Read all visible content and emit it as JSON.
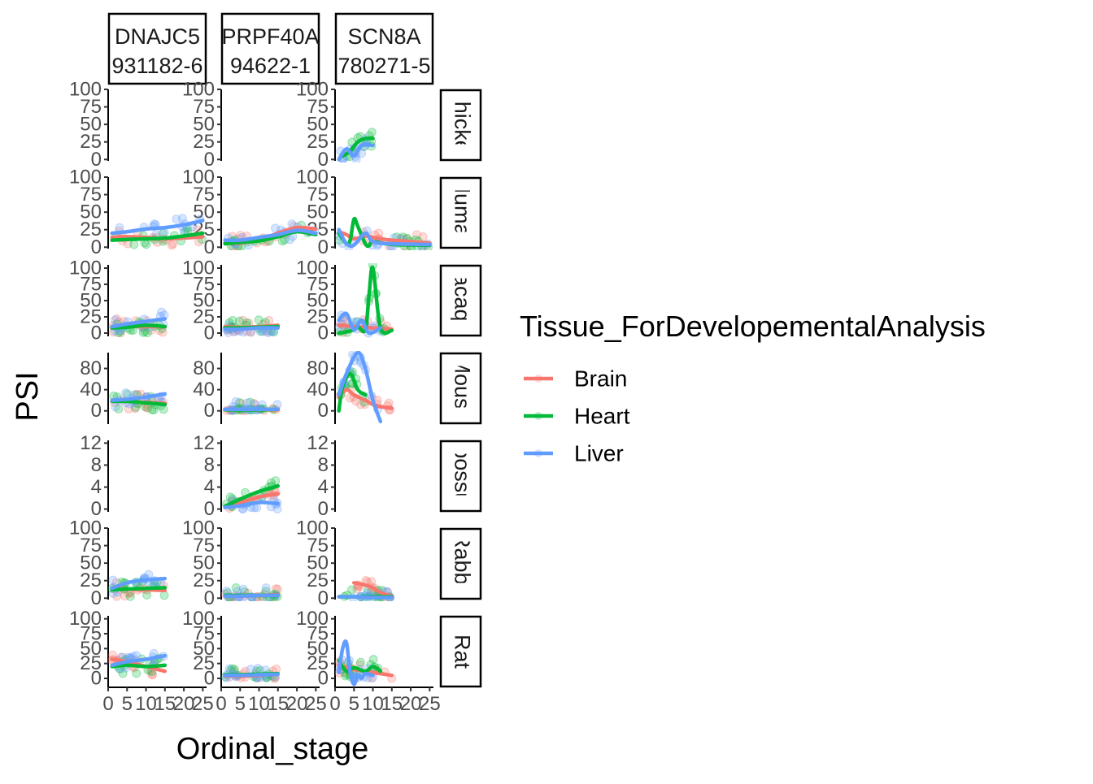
{
  "chart_data": {
    "type": "scatter",
    "facet_columns": [
      "DNAJC5\n931182-6",
      "PRPF40A\n94622-1",
      "SCN8A\n780271-5"
    ],
    "facet_rows": [
      "Chicken",
      "Human",
      "Macaque",
      "Mouse",
      "Opossum",
      "Rabbit",
      "Rat"
    ],
    "xlabel": "Ordinal_stage",
    "ylabel": "PSI",
    "x_ticks": [
      0,
      5,
      10,
      15,
      20,
      25
    ],
    "xlim": [
      0,
      26
    ],
    "y_ticks_by_row": [
      [
        0,
        25,
        50,
        75,
        100
      ],
      [
        0,
        25,
        50,
        75,
        100
      ],
      [
        0,
        25,
        50,
        75,
        100
      ],
      [
        0,
        40,
        80
      ],
      [
        0,
        4,
        8,
        12
      ],
      [
        0,
        25,
        50,
        75,
        100
      ],
      [
        0,
        25,
        50,
        75,
        100
      ]
    ],
    "ylims_by_row": [
      [
        -2,
        100
      ],
      [
        -2,
        100
      ],
      [
        -5,
        105
      ],
      [
        -25,
        110
      ],
      [
        -0.5,
        12.5
      ],
      [
        -2,
        100
      ],
      [
        -15,
        105
      ]
    ],
    "legend_title": "Tissue_ForDevelopementalAnalysis",
    "legend_position": "right",
    "grid": false,
    "series": [
      {
        "name": "Brain",
        "color": "#F8766D",
        "smooth": [
          {
            "row": 1,
            "col": 0,
            "x": [
              1,
              5,
              10,
              15,
              20,
              25
            ],
            "y": [
              14,
              15,
              14,
              12,
              13,
              15
            ]
          },
          {
            "row": 1,
            "col": 1,
            "x": [
              1,
              5,
              10,
              15,
              20,
              25
            ],
            "y": [
              6,
              6,
              10,
              20,
              28,
              26
            ]
          },
          {
            "row": 1,
            "col": 2,
            "x": [
              1,
              3,
              5,
              8,
              10,
              12,
              15,
              20,
              25
            ],
            "y": [
              22,
              18,
              12,
              16,
              14,
              12,
              10,
              8,
              6
            ]
          },
          {
            "row": 2,
            "col": 0,
            "x": [
              1,
              5,
              10,
              15
            ],
            "y": [
              10,
              10,
              10,
              10
            ]
          },
          {
            "row": 2,
            "col": 1,
            "x": [
              1,
              5,
              10,
              15
            ],
            "y": [
              10,
              9,
              10,
              12
            ]
          },
          {
            "row": 2,
            "col": 2,
            "x": [
              1,
              5,
              10,
              15
            ],
            "y": [
              12,
              10,
              8,
              6
            ]
          },
          {
            "row": 3,
            "col": 0,
            "x": [
              1,
              5,
              10,
              15
            ],
            "y": [
              20,
              18,
              16,
              14
            ]
          },
          {
            "row": 3,
            "col": 1,
            "x": [
              1,
              5,
              10,
              15
            ],
            "y": [
              2,
              2,
              2,
              2
            ]
          },
          {
            "row": 3,
            "col": 2,
            "x": [
              1,
              3,
              5,
              8,
              10,
              12,
              15
            ],
            "y": [
              25,
              40,
              30,
              20,
              12,
              8,
              5
            ]
          },
          {
            "row": 4,
            "col": 1,
            "x": [
              1,
              5,
              10,
              15
            ],
            "y": [
              0.5,
              1.2,
              2.2,
              2.8
            ]
          },
          {
            "row": 5,
            "col": 0,
            "x": [
              1,
              5,
              10,
              15
            ],
            "y": [
              14,
              13,
              12,
              11
            ]
          },
          {
            "row": 5,
            "col": 1,
            "x": [
              1,
              5,
              10,
              15
            ],
            "y": [
              3,
              3,
              4,
              5
            ]
          },
          {
            "row": 5,
            "col": 2,
            "x": [
              5,
              7,
              10,
              12,
              15
            ],
            "y": [
              22,
              20,
              15,
              8,
              3
            ]
          },
          {
            "row": 6,
            "col": 0,
            "x": [
              1,
              5,
              10,
              15
            ],
            "y": [
              32,
              28,
              20,
              12
            ]
          },
          {
            "row": 6,
            "col": 1,
            "x": [
              1,
              5,
              10,
              15
            ],
            "y": [
              4,
              4,
              5,
              8
            ]
          },
          {
            "row": 6,
            "col": 2,
            "x": [
              1,
              5,
              10,
              15
            ],
            "y": [
              22,
              15,
              10,
              5
            ]
          }
        ]
      },
      {
        "name": "Heart",
        "color": "#00BA38",
        "smooth": [
          {
            "row": 0,
            "col": 2,
            "x": [
              2,
              4,
              6,
              8,
              10
            ],
            "y": [
              5,
              12,
              25,
              30,
              30
            ]
          },
          {
            "row": 1,
            "col": 0,
            "x": [
              1,
              5,
              10,
              15,
              20,
              25
            ],
            "y": [
              10,
              11,
              12,
              13,
              16,
              20
            ]
          },
          {
            "row": 1,
            "col": 1,
            "x": [
              1,
              5,
              10,
              15,
              20,
              25
            ],
            "y": [
              5,
              7,
              9,
              15,
              22,
              18
            ]
          },
          {
            "row": 1,
            "col": 2,
            "x": [
              1,
              3,
              4,
              5,
              6,
              8,
              9,
              10,
              15,
              25
            ],
            "y": [
              20,
              5,
              10,
              40,
              30,
              5,
              2,
              8,
              4,
              3
            ]
          },
          {
            "row": 2,
            "col": 0,
            "x": [
              1,
              5,
              10,
              15
            ],
            "y": [
              8,
              9,
              12,
              10
            ]
          },
          {
            "row": 2,
            "col": 1,
            "x": [
              1,
              5,
              10,
              15
            ],
            "y": [
              8,
              8,
              9,
              10
            ]
          },
          {
            "row": 2,
            "col": 2,
            "x": [
              1,
              3,
              5,
              6,
              8,
              9,
              10,
              12,
              15
            ],
            "y": [
              0,
              2,
              5,
              10,
              5,
              60,
              100,
              8,
              4
            ]
          },
          {
            "row": 3,
            "col": 0,
            "x": [
              1,
              5,
              10,
              15
            ],
            "y": [
              18,
              18,
              15,
              12
            ]
          },
          {
            "row": 3,
            "col": 1,
            "x": [
              1,
              5,
              10,
              15
            ],
            "y": [
              2,
              2,
              2,
              3
            ]
          },
          {
            "row": 3,
            "col": 2,
            "x": [
              1,
              2,
              4,
              6,
              8
            ],
            "y": [
              0,
              45,
              70,
              40,
              30
            ]
          },
          {
            "row": 4,
            "col": 1,
            "x": [
              1,
              5,
              10,
              15
            ],
            "y": [
              0.5,
              1.8,
              3.2,
              4.2
            ]
          },
          {
            "row": 5,
            "col": 0,
            "x": [
              1,
              5,
              10,
              15
            ],
            "y": [
              12,
              13,
              14,
              15
            ]
          },
          {
            "row": 5,
            "col": 1,
            "x": [
              1,
              5,
              10,
              15
            ],
            "y": [
              4,
              4,
              4,
              4
            ]
          },
          {
            "row": 5,
            "col": 2,
            "x": [
              1,
              5,
              10,
              15
            ],
            "y": [
              2,
              2,
              2,
              2
            ]
          },
          {
            "row": 6,
            "col": 0,
            "x": [
              1,
              5,
              10,
              15
            ],
            "y": [
              20,
              22,
              20,
              22
            ]
          },
          {
            "row": 6,
            "col": 1,
            "x": [
              1,
              5,
              10,
              15
            ],
            "y": [
              6,
              6,
              7,
              8
            ]
          },
          {
            "row": 6,
            "col": 2,
            "x": [
              1,
              3,
              5,
              8,
              10,
              12
            ],
            "y": [
              30,
              12,
              18,
              12,
              20,
              12
            ]
          }
        ]
      },
      {
        "name": "Liver",
        "color": "#619CFF",
        "smooth": [
          {
            "row": 0,
            "col": 2,
            "x": [
              1,
              3,
              5,
              7,
              10
            ],
            "y": [
              0,
              15,
              5,
              20,
              20
            ]
          },
          {
            "row": 1,
            "col": 0,
            "x": [
              1,
              5,
              10,
              15,
              20,
              25
            ],
            "y": [
              20,
              22,
              26,
              28,
              32,
              38
            ]
          },
          {
            "row": 1,
            "col": 1,
            "x": [
              1,
              5,
              10,
              15,
              20,
              25
            ],
            "y": [
              10,
              10,
              14,
              18,
              24,
              20
            ]
          },
          {
            "row": 1,
            "col": 2,
            "x": [
              1,
              3,
              5,
              8,
              10,
              15,
              25
            ],
            "y": [
              25,
              5,
              3,
              20,
              8,
              5,
              4
            ]
          },
          {
            "row": 2,
            "col": 0,
            "x": [
              1,
              5,
              10,
              15
            ],
            "y": [
              10,
              14,
              18,
              22
            ]
          },
          {
            "row": 2,
            "col": 1,
            "x": [
              1,
              5,
              10,
              15
            ],
            "y": [
              6,
              6,
              8,
              8
            ]
          },
          {
            "row": 2,
            "col": 2,
            "x": [
              1,
              3,
              5,
              7,
              9,
              12
            ],
            "y": [
              20,
              30,
              5,
              20,
              0,
              8
            ]
          },
          {
            "row": 3,
            "col": 0,
            "x": [
              1,
              5,
              10,
              15
            ],
            "y": [
              20,
              22,
              26,
              32
            ]
          },
          {
            "row": 3,
            "col": 1,
            "x": [
              1,
              5,
              10,
              15
            ],
            "y": [
              3,
              3,
              3,
              3
            ]
          },
          {
            "row": 3,
            "col": 2,
            "x": [
              1,
              3,
              6,
              8,
              10,
              12
            ],
            "y": [
              30,
              70,
              110,
              80,
              20,
              -20
            ]
          },
          {
            "row": 4,
            "col": 1,
            "x": [
              1,
              5,
              10,
              15
            ],
            "y": [
              0.3,
              0.6,
              1.2,
              1.0
            ]
          },
          {
            "row": 5,
            "col": 0,
            "x": [
              1,
              5,
              10,
              15
            ],
            "y": [
              14,
              22,
              26,
              28
            ]
          },
          {
            "row": 5,
            "col": 1,
            "x": [
              1,
              5,
              10,
              15
            ],
            "y": [
              3,
              3,
              4,
              4
            ]
          },
          {
            "row": 5,
            "col": 2,
            "x": [
              1,
              5,
              10,
              15
            ],
            "y": [
              2,
              2,
              1,
              1
            ]
          },
          {
            "row": 6,
            "col": 0,
            "x": [
              1,
              5,
              10,
              15
            ],
            "y": [
              22,
              28,
              32,
              38
            ]
          },
          {
            "row": 6,
            "col": 1,
            "x": [
              1,
              5,
              10,
              15
            ],
            "y": [
              5,
              5,
              6,
              7
            ]
          },
          {
            "row": 6,
            "col": 2,
            "x": [
              1,
              2,
              3,
              4,
              5,
              6,
              7,
              8,
              10
            ],
            "y": [
              10,
              50,
              60,
              10,
              -10,
              5,
              0,
              8,
              5
            ]
          }
        ]
      }
    ]
  }
}
